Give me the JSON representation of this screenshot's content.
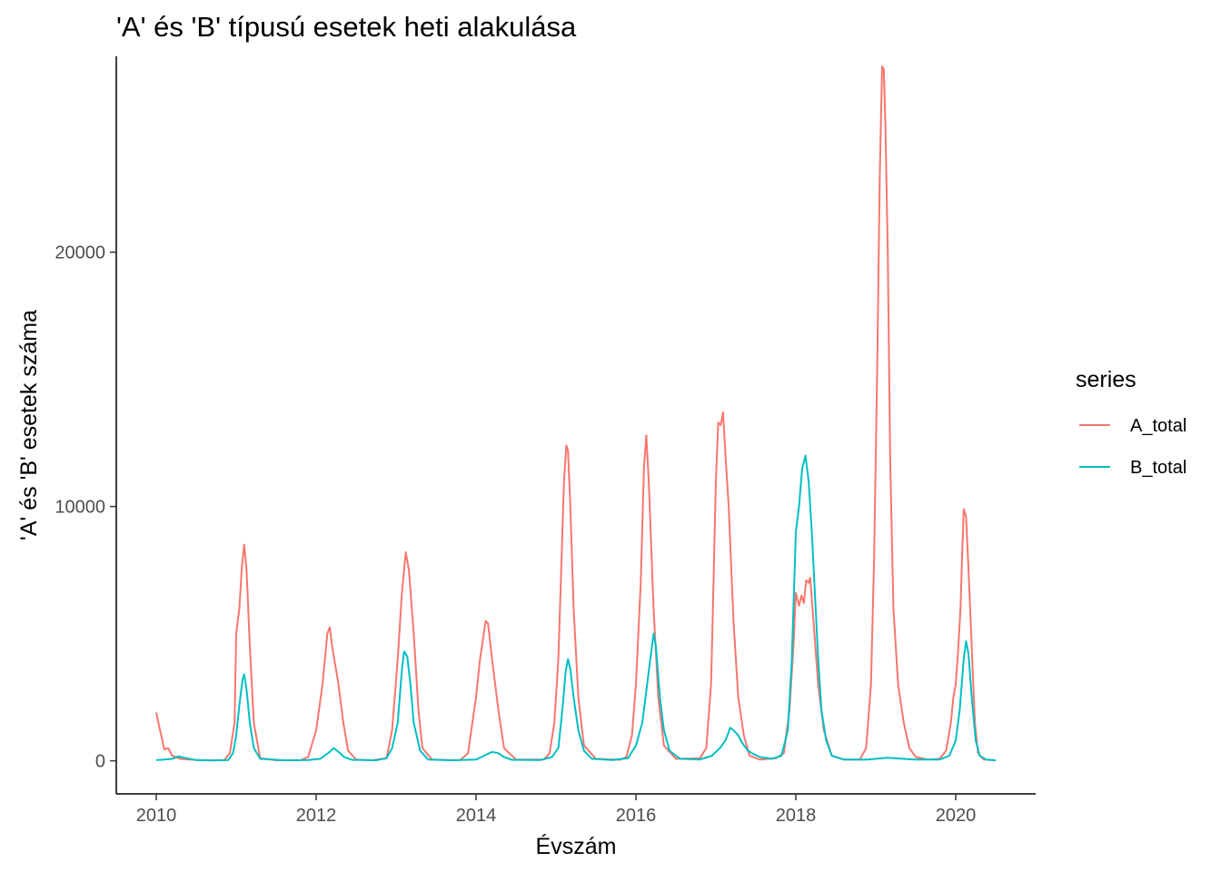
{
  "chart_data": {
    "type": "line",
    "title": "'A' és 'B' típusú esetek heti alakulása",
    "xlabel": "Évszám",
    "ylabel": "'A' és 'B' esetek száma",
    "xlim": [
      2009.5,
      2021
    ],
    "ylim": [
      -1300,
      27700
    ],
    "x_ticks": [
      2010,
      2012,
      2014,
      2016,
      2018,
      2020
    ],
    "y_ticks": [
      0,
      10000,
      20000
    ],
    "grid": false,
    "legend": {
      "title": "series",
      "position": "right"
    },
    "series": [
      {
        "name": "A_total",
        "color": "#F8766D",
        "points": [
          [
            2010.0,
            1900
          ],
          [
            2010.04,
            1300
          ],
          [
            2010.07,
            900
          ],
          [
            2010.1,
            450
          ],
          [
            2010.15,
            500
          ],
          [
            2010.2,
            200
          ],
          [
            2010.3,
            80
          ],
          [
            2010.5,
            30
          ],
          [
            2010.7,
            20
          ],
          [
            2010.85,
            30
          ],
          [
            2010.92,
            300
          ],
          [
            2010.98,
            1500
          ],
          [
            2011.0,
            5000
          ],
          [
            2011.04,
            6000
          ],
          [
            2011.07,
            7600
          ],
          [
            2011.1,
            8500
          ],
          [
            2011.13,
            7500
          ],
          [
            2011.17,
            4500
          ],
          [
            2011.22,
            1500
          ],
          [
            2011.3,
            100
          ],
          [
            2011.5,
            20
          ],
          [
            2011.8,
            20
          ],
          [
            2011.9,
            150
          ],
          [
            2012.0,
            1200
          ],
          [
            2012.08,
            3000
          ],
          [
            2012.14,
            5000
          ],
          [
            2012.17,
            5250
          ],
          [
            2012.2,
            4500
          ],
          [
            2012.28,
            3000
          ],
          [
            2012.34,
            1500
          ],
          [
            2012.4,
            400
          ],
          [
            2012.5,
            50
          ],
          [
            2012.7,
            20
          ],
          [
            2012.88,
            100
          ],
          [
            2012.95,
            1200
          ],
          [
            2013.02,
            4000
          ],
          [
            2013.07,
            6500
          ],
          [
            2013.12,
            8200
          ],
          [
            2013.16,
            7500
          ],
          [
            2013.22,
            5000
          ],
          [
            2013.28,
            2000
          ],
          [
            2013.33,
            500
          ],
          [
            2013.45,
            50
          ],
          [
            2013.8,
            20
          ],
          [
            2013.9,
            300
          ],
          [
            2014.0,
            2500
          ],
          [
            2014.05,
            4000
          ],
          [
            2014.12,
            5500
          ],
          [
            2014.15,
            5400
          ],
          [
            2014.2,
            4000
          ],
          [
            2014.28,
            2000
          ],
          [
            2014.35,
            500
          ],
          [
            2014.5,
            50
          ],
          [
            2014.85,
            50
          ],
          [
            2014.92,
            300
          ],
          [
            2014.98,
            1500
          ],
          [
            2015.03,
            4000
          ],
          [
            2015.07,
            8000
          ],
          [
            2015.1,
            11000
          ],
          [
            2015.13,
            12400
          ],
          [
            2015.15,
            12200
          ],
          [
            2015.18,
            10000
          ],
          [
            2015.22,
            6000
          ],
          [
            2015.28,
            2500
          ],
          [
            2015.35,
            600
          ],
          [
            2015.5,
            80
          ],
          [
            2015.8,
            40
          ],
          [
            2015.88,
            150
          ],
          [
            2015.95,
            1000
          ],
          [
            2016.0,
            3000
          ],
          [
            2016.06,
            7000
          ],
          [
            2016.1,
            11500
          ],
          [
            2016.13,
            12800
          ],
          [
            2016.16,
            11000
          ],
          [
            2016.22,
            6000
          ],
          [
            2016.28,
            2500
          ],
          [
            2016.35,
            600
          ],
          [
            2016.5,
            80
          ],
          [
            2016.8,
            100
          ],
          [
            2016.88,
            500
          ],
          [
            2016.94,
            3000
          ],
          [
            2016.97,
            7000
          ],
          [
            2017.0,
            11000
          ],
          [
            2017.03,
            13300
          ],
          [
            2017.06,
            13200
          ],
          [
            2017.09,
            13700
          ],
          [
            2017.12,
            12000
          ],
          [
            2017.16,
            10000
          ],
          [
            2017.22,
            5500
          ],
          [
            2017.28,
            2500
          ],
          [
            2017.35,
            1000
          ],
          [
            2017.42,
            200
          ],
          [
            2017.55,
            50
          ],
          [
            2017.75,
            100
          ],
          [
            2017.85,
            300
          ],
          [
            2017.92,
            2000
          ],
          [
            2017.97,
            4500
          ],
          [
            2018.0,
            6600
          ],
          [
            2018.04,
            6100
          ],
          [
            2018.07,
            6500
          ],
          [
            2018.1,
            6200
          ],
          [
            2018.13,
            7100
          ],
          [
            2018.16,
            7000
          ],
          [
            2018.18,
            7200
          ],
          [
            2018.22,
            5500
          ],
          [
            2018.28,
            3000
          ],
          [
            2018.35,
            1200
          ],
          [
            2018.45,
            200
          ],
          [
            2018.6,
            50
          ],
          [
            2018.8,
            50
          ],
          [
            2018.88,
            500
          ],
          [
            2018.94,
            3000
          ],
          [
            2018.98,
            8000
          ],
          [
            2019.02,
            16000
          ],
          [
            2019.05,
            23000
          ],
          [
            2019.08,
            27300
          ],
          [
            2019.1,
            27200
          ],
          [
            2019.12,
            25000
          ],
          [
            2019.15,
            20000
          ],
          [
            2019.18,
            12000
          ],
          [
            2019.22,
            6000
          ],
          [
            2019.28,
            3000
          ],
          [
            2019.35,
            1500
          ],
          [
            2019.42,
            500
          ],
          [
            2019.5,
            150
          ],
          [
            2019.65,
            50
          ],
          [
            2019.8,
            80
          ],
          [
            2019.88,
            400
          ],
          [
            2019.94,
            1500
          ],
          [
            2019.97,
            2500
          ],
          [
            2020.0,
            3000
          ],
          [
            2020.03,
            4300
          ],
          [
            2020.06,
            6000
          ],
          [
            2020.08,
            8000
          ],
          [
            2020.1,
            9900
          ],
          [
            2020.13,
            9600
          ],
          [
            2020.16,
            7500
          ],
          [
            2020.2,
            4500
          ],
          [
            2020.24,
            1500
          ],
          [
            2020.28,
            300
          ],
          [
            2020.35,
            50
          ],
          [
            2020.5,
            20
          ]
        ]
      },
      {
        "name": "B_total",
        "color": "#00BFC4",
        "points": [
          [
            2010.0,
            30
          ],
          [
            2010.1,
            50
          ],
          [
            2010.2,
            80
          ],
          [
            2010.28,
            180
          ],
          [
            2010.35,
            120
          ],
          [
            2010.5,
            30
          ],
          [
            2010.7,
            10
          ],
          [
            2010.9,
            30
          ],
          [
            2010.96,
            300
          ],
          [
            2011.0,
            1000
          ],
          [
            2011.04,
            2200
          ],
          [
            2011.08,
            3200
          ],
          [
            2011.1,
            3400
          ],
          [
            2011.13,
            2800
          ],
          [
            2011.17,
            1500
          ],
          [
            2011.22,
            500
          ],
          [
            2011.3,
            80
          ],
          [
            2011.6,
            20
          ],
          [
            2011.9,
            30
          ],
          [
            2012.05,
            80
          ],
          [
            2012.15,
            300
          ],
          [
            2012.22,
            500
          ],
          [
            2012.28,
            350
          ],
          [
            2012.35,
            150
          ],
          [
            2012.45,
            40
          ],
          [
            2012.75,
            20
          ],
          [
            2012.88,
            100
          ],
          [
            2012.95,
            500
          ],
          [
            2013.02,
            1500
          ],
          [
            2013.07,
            3500
          ],
          [
            2013.1,
            4300
          ],
          [
            2013.14,
            4100
          ],
          [
            2013.18,
            3000
          ],
          [
            2013.22,
            1500
          ],
          [
            2013.3,
            400
          ],
          [
            2013.4,
            50
          ],
          [
            2013.7,
            20
          ],
          [
            2014.0,
            50
          ],
          [
            2014.1,
            200
          ],
          [
            2014.2,
            350
          ],
          [
            2014.28,
            300
          ],
          [
            2014.35,
            150
          ],
          [
            2014.45,
            40
          ],
          [
            2014.8,
            30
          ],
          [
            2014.95,
            150
          ],
          [
            2015.03,
            500
          ],
          [
            2015.08,
            2000
          ],
          [
            2015.12,
            3500
          ],
          [
            2015.15,
            4000
          ],
          [
            2015.18,
            3600
          ],
          [
            2015.22,
            2500
          ],
          [
            2015.28,
            1200
          ],
          [
            2015.35,
            400
          ],
          [
            2015.45,
            80
          ],
          [
            2015.7,
            30
          ],
          [
            2015.9,
            100
          ],
          [
            2016.0,
            600
          ],
          [
            2016.08,
            1500
          ],
          [
            2016.14,
            3000
          ],
          [
            2016.18,
            4000
          ],
          [
            2016.22,
            5000
          ],
          [
            2016.25,
            4500
          ],
          [
            2016.3,
            2500
          ],
          [
            2016.35,
            1200
          ],
          [
            2016.42,
            400
          ],
          [
            2016.55,
            80
          ],
          [
            2016.8,
            50
          ],
          [
            2016.95,
            200
          ],
          [
            2017.05,
            500
          ],
          [
            2017.12,
            800
          ],
          [
            2017.18,
            1300
          ],
          [
            2017.22,
            1200
          ],
          [
            2017.28,
            1000
          ],
          [
            2017.33,
            700
          ],
          [
            2017.4,
            400
          ],
          [
            2017.45,
            300
          ],
          [
            2017.55,
            150
          ],
          [
            2017.7,
            80
          ],
          [
            2017.82,
            200
          ],
          [
            2017.9,
            1200
          ],
          [
            2017.95,
            4000
          ],
          [
            2018.0,
            9000
          ],
          [
            2018.04,
            10000
          ],
          [
            2018.08,
            11500
          ],
          [
            2018.12,
            12000
          ],
          [
            2018.16,
            11000
          ],
          [
            2018.2,
            9000
          ],
          [
            2018.24,
            6500
          ],
          [
            2018.28,
            4000
          ],
          [
            2018.32,
            2000
          ],
          [
            2018.38,
            800
          ],
          [
            2018.45,
            200
          ],
          [
            2018.6,
            50
          ],
          [
            2018.9,
            50
          ],
          [
            2019.0,
            80
          ],
          [
            2019.15,
            120
          ],
          [
            2019.3,
            90
          ],
          [
            2019.5,
            50
          ],
          [
            2019.8,
            50
          ],
          [
            2019.92,
            200
          ],
          [
            2020.0,
            800
          ],
          [
            2020.05,
            2000
          ],
          [
            2020.1,
            4000
          ],
          [
            2020.13,
            4700
          ],
          [
            2020.16,
            4200
          ],
          [
            2020.2,
            2500
          ],
          [
            2020.25,
            800
          ],
          [
            2020.3,
            200
          ],
          [
            2020.38,
            50
          ],
          [
            2020.5,
            20
          ]
        ]
      }
    ]
  }
}
